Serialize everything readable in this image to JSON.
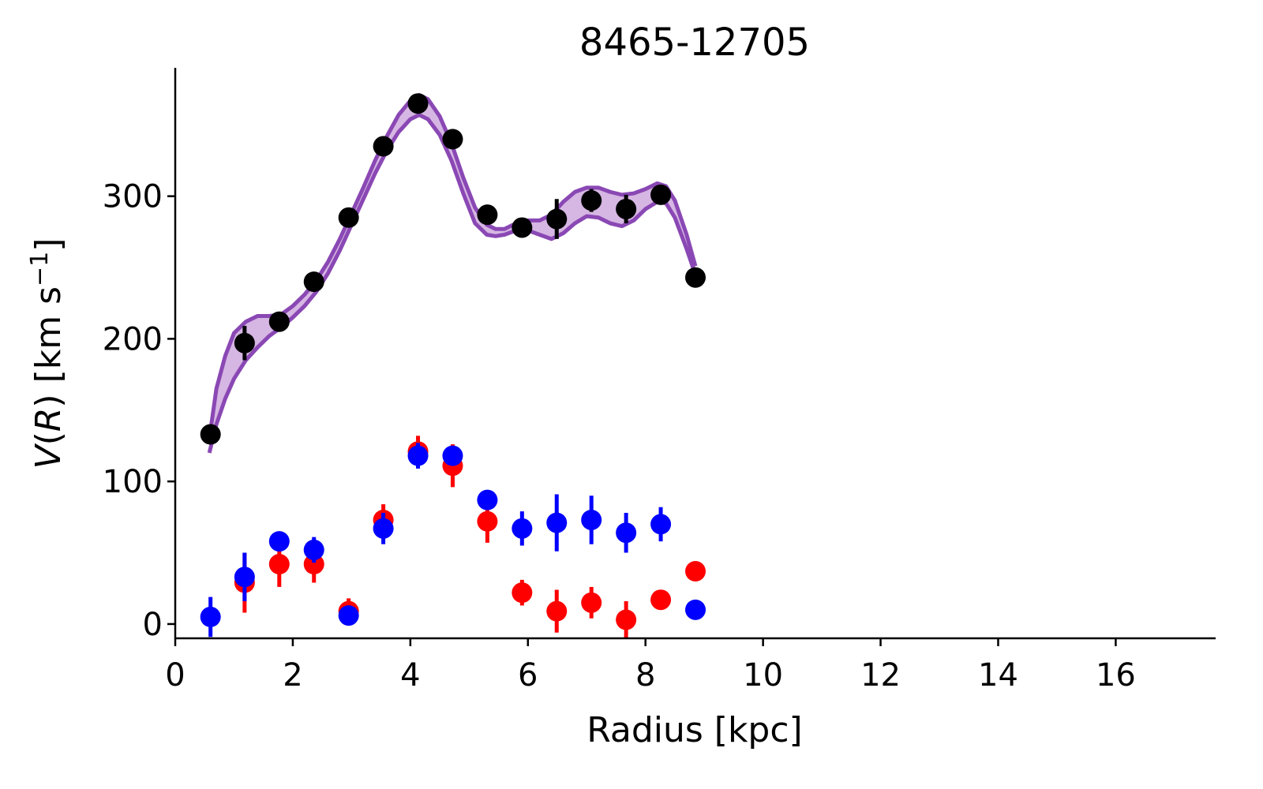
{
  "chart_data": {
    "type": "scatter",
    "title": "8465-12705",
    "xlabel": "Radius [kpc]",
    "ylabel": "V(R) [km s⁻¹]",
    "ylabel_parts": {
      "v": "V",
      "open": "(",
      "r": "R",
      "close": ") [km s",
      "exp": "−1",
      "end": "]"
    },
    "xlim": [
      0,
      17.7
    ],
    "ylim": [
      -10,
      390
    ],
    "xticks": [
      0,
      2,
      4,
      6,
      8,
      10,
      12,
      14,
      16
    ],
    "yticks": [
      0,
      100,
      200,
      300
    ],
    "grid": false,
    "colors": {
      "total": "#000000",
      "red": "#ff0000",
      "blue": "#0000ff",
      "band_line": "#8a48b4",
      "band_fill": "#d6b6e3"
    },
    "series": [
      {
        "key": "total",
        "color": "#000000",
        "x": [
          0.6,
          1.18,
          1.77,
          2.36,
          2.95,
          3.54,
          4.13,
          4.72,
          5.31,
          5.9,
          6.49,
          7.08,
          7.67,
          8.26,
          8.85
        ],
        "y": [
          133,
          197,
          212,
          240,
          285,
          335,
          365,
          340,
          287,
          278,
          284,
          297,
          291,
          301,
          243
        ],
        "err": [
          6,
          12,
          5,
          6,
          6,
          5,
          5,
          5,
          7,
          5,
          14,
          8,
          10,
          5,
          4
        ]
      },
      {
        "key": "red",
        "color": "#ff0000",
        "x": [
          1.18,
          1.77,
          2.36,
          2.95,
          3.54,
          4.13,
          4.72,
          5.31,
          5.9,
          6.49,
          7.08,
          7.67,
          8.26,
          8.85
        ],
        "y": [
          29,
          42,
          42,
          9,
          73,
          121,
          111,
          72,
          22,
          9,
          15,
          3,
          17,
          37
        ],
        "err": [
          21,
          16,
          13,
          9,
          11,
          11,
          15,
          15,
          9,
          15,
          11,
          13,
          6,
          4
        ]
      },
      {
        "key": "blue",
        "color": "#0000ff",
        "x": [
          0.6,
          1.18,
          1.77,
          2.36,
          2.95,
          3.54,
          4.13,
          4.72,
          5.31,
          5.9,
          6.49,
          7.08,
          7.67,
          8.26,
          8.85
        ],
        "y": [
          5,
          33,
          58,
          52,
          6,
          67,
          118,
          118,
          87,
          67,
          71,
          73,
          64,
          70,
          10
        ],
        "err": [
          14,
          17,
          6,
          9,
          5,
          11,
          9,
          5,
          6,
          12,
          20,
          17,
          14,
          12,
          4
        ]
      }
    ],
    "model_band": {
      "x": [
        0.58,
        0.7,
        0.85,
        1.0,
        1.2,
        1.4,
        1.6,
        1.8,
        2.0,
        2.2,
        2.4,
        2.6,
        2.8,
        3.0,
        3.2,
        3.4,
        3.6,
        3.8,
        4.0,
        4.15,
        4.3,
        4.5,
        4.7,
        4.9,
        5.1,
        5.3,
        5.45,
        5.6,
        5.8,
        6.0,
        6.2,
        6.4,
        6.6,
        6.8,
        7.0,
        7.2,
        7.4,
        7.6,
        7.8,
        8.0,
        8.2,
        8.35,
        8.5,
        8.7,
        8.85
      ],
      "lower": [
        120,
        140,
        158,
        172,
        185,
        194,
        202,
        208,
        215,
        223,
        233,
        246,
        262,
        280,
        298,
        316,
        332,
        345,
        354,
        357,
        354,
        343,
        325,
        302,
        281,
        273,
        272,
        273,
        276,
        276,
        273,
        270,
        274,
        281,
        286,
        285,
        281,
        279,
        283,
        291,
        296,
        295,
        285,
        263,
        245
      ],
      "upper": [
        130,
        165,
        188,
        204,
        212,
        216,
        216,
        217,
        223,
        231,
        241,
        254,
        270,
        288,
        306,
        325,
        342,
        357,
        367,
        371,
        368,
        356,
        337,
        313,
        292,
        280,
        277,
        277,
        281,
        283,
        283,
        287,
        296,
        303,
        306,
        306,
        303,
        301,
        302,
        305,
        309,
        307,
        297,
        273,
        251
      ]
    }
  }
}
